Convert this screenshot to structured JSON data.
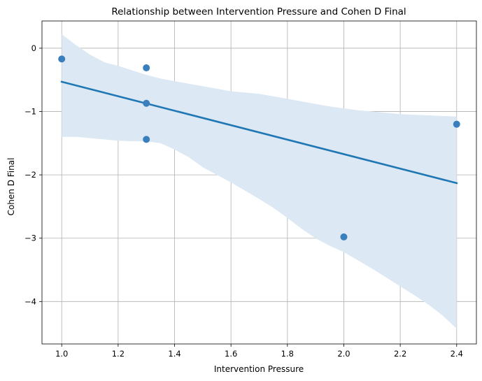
{
  "chart_data": {
    "type": "scatter",
    "title": "Relationship between Intervention Pressure and Cohen D Final",
    "xlabel": "Intervention Pressure",
    "ylabel": "Cohen D Final",
    "xlim": [
      0.93,
      2.47
    ],
    "ylim": [
      -4.67,
      0.43
    ],
    "xticks": [
      1.0,
      1.2,
      1.4,
      1.6,
      1.8,
      2.0,
      2.2,
      2.4
    ],
    "xtick_labels": [
      "1.0",
      "1.2",
      "1.4",
      "1.6",
      "1.8",
      "2.0",
      "2.2",
      "2.4"
    ],
    "yticks": [
      0,
      -1,
      -2,
      -3,
      -4
    ],
    "ytick_labels": [
      "0",
      "−1",
      "−2",
      "−3",
      "−4"
    ],
    "grid": true,
    "points": [
      {
        "x": 1.0,
        "y": -0.17
      },
      {
        "x": 1.3,
        "y": -0.31
      },
      {
        "x": 1.3,
        "y": -0.87
      },
      {
        "x": 1.3,
        "y": -1.44
      },
      {
        "x": 2.0,
        "y": -2.98
      },
      {
        "x": 2.4,
        "y": -1.2
      }
    ],
    "regression_line": {
      "x": [
        1.0,
        2.4
      ],
      "y": [
        -0.53,
        -2.13
      ]
    },
    "confidence_band": {
      "x": [
        1.0,
        1.05,
        1.1,
        1.15,
        1.2,
        1.25,
        1.3,
        1.35,
        1.4,
        1.45,
        1.5,
        1.55,
        1.6,
        1.65,
        1.7,
        1.75,
        1.8,
        1.85,
        1.9,
        1.95,
        2.0,
        2.05,
        2.1,
        2.15,
        2.2,
        2.25,
        2.3,
        2.35,
        2.4
      ],
      "upper": [
        0.22,
        0.05,
        -0.1,
        -0.22,
        -0.28,
        -0.35,
        -0.42,
        -0.48,
        -0.52,
        -0.56,
        -0.6,
        -0.64,
        -0.68,
        -0.7,
        -0.72,
        -0.76,
        -0.8,
        -0.84,
        -0.88,
        -0.92,
        -0.95,
        -0.98,
        -1.0,
        -1.02,
        -1.04,
        -1.05,
        -1.06,
        -1.07,
        -1.08
      ],
      "lower": [
        -1.4,
        -1.4,
        -1.42,
        -1.44,
        -1.46,
        -1.47,
        -1.47,
        -1.5,
        -1.6,
        -1.72,
        -1.88,
        -2.0,
        -2.12,
        -2.25,
        -2.38,
        -2.52,
        -2.68,
        -2.85,
        -3.0,
        -3.12,
        -3.22,
        -3.35,
        -3.48,
        -3.62,
        -3.76,
        -3.9,
        -4.05,
        -4.22,
        -4.43
      ]
    },
    "colors": {
      "point": "#3a7fbd",
      "line": "#1f77b4",
      "band": "#dce8f3",
      "grid": "#b0b0b0",
      "axis": "#000000"
    }
  }
}
